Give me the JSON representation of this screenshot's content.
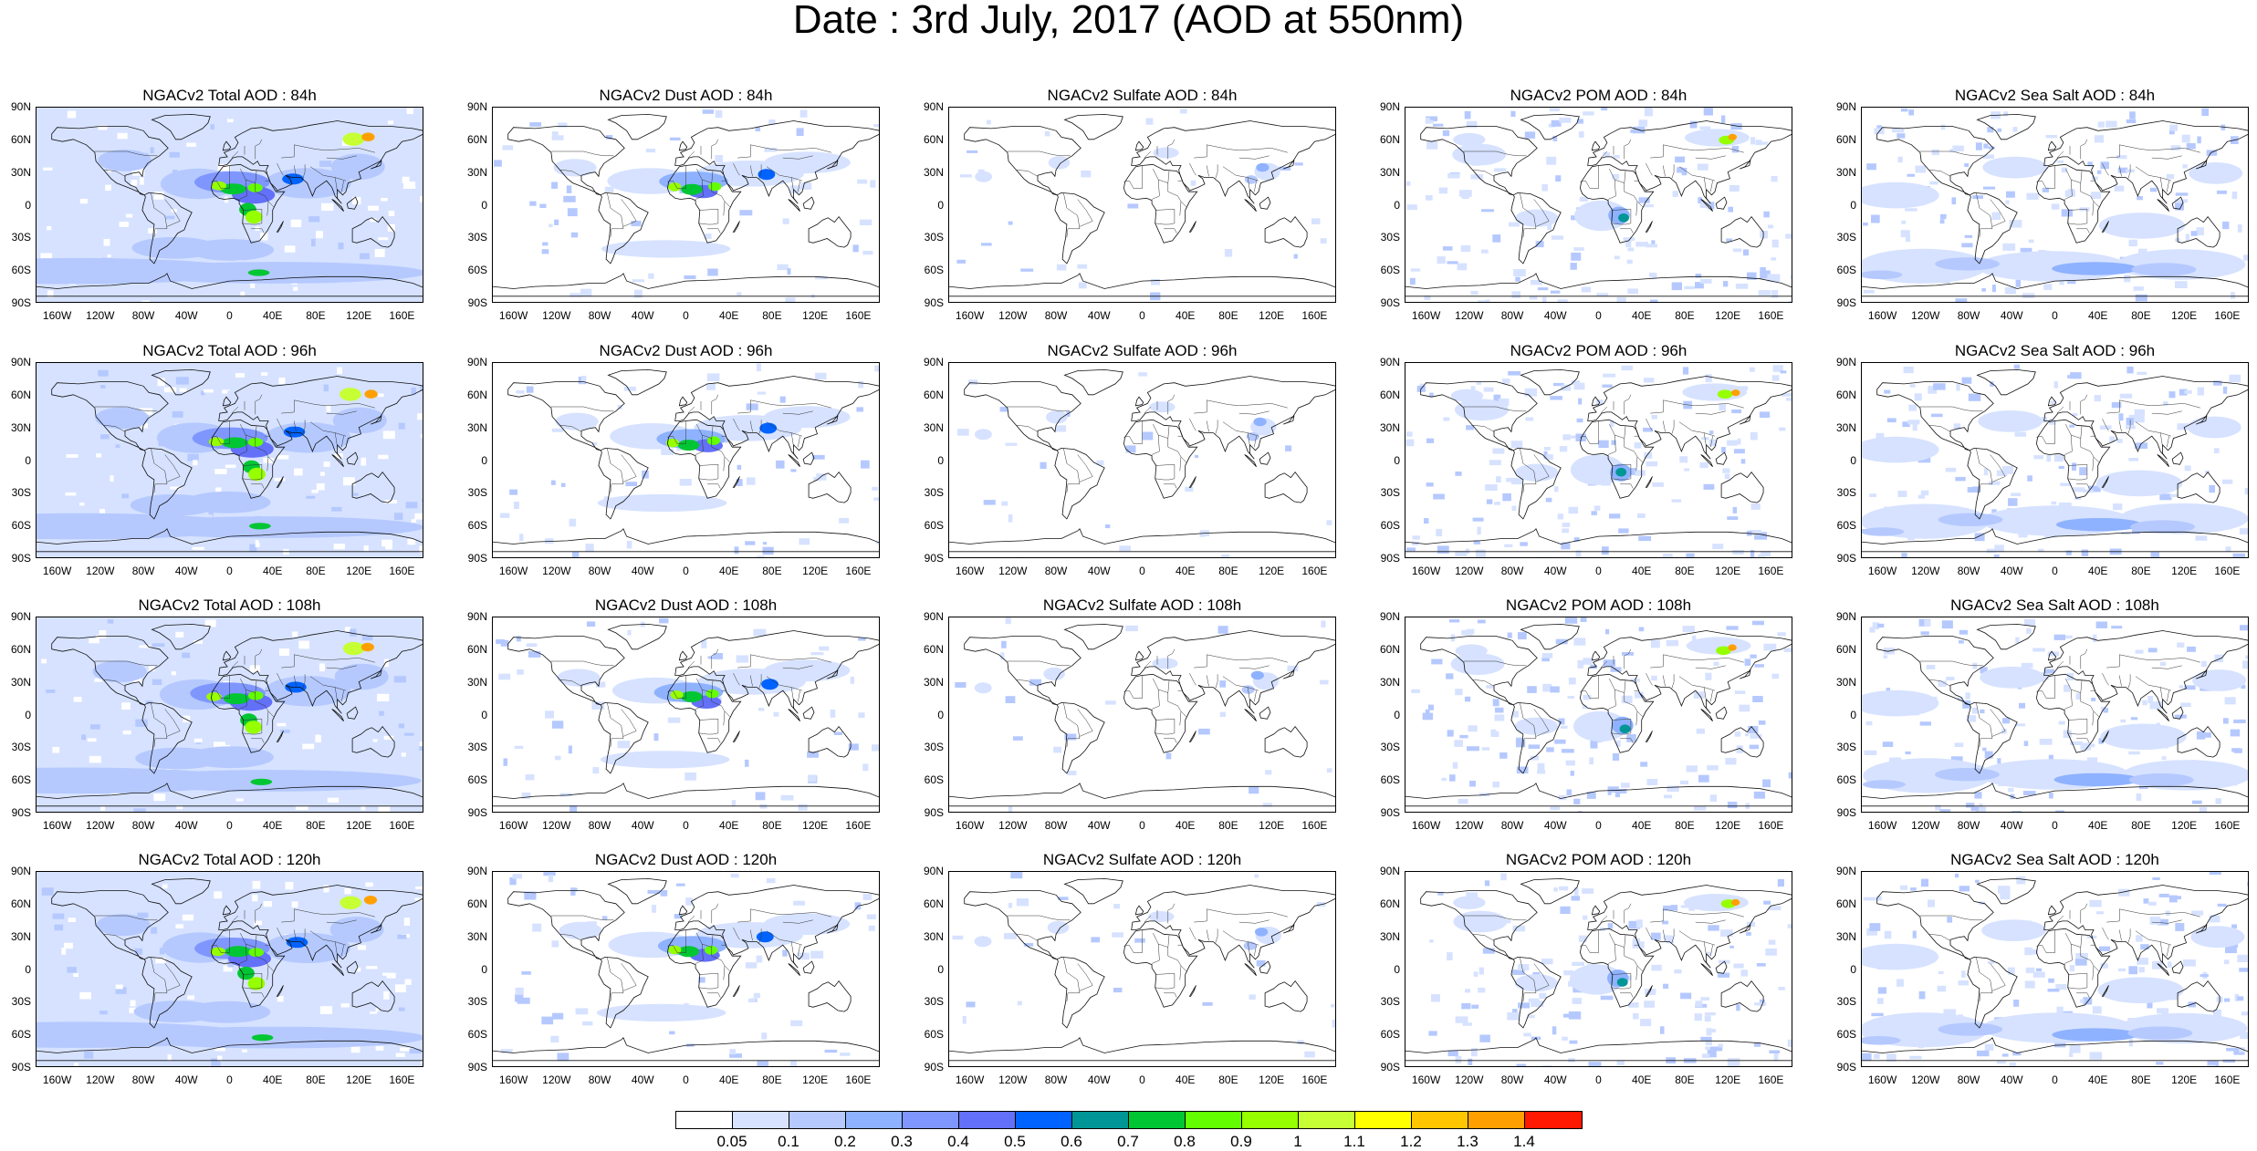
{
  "title": "Date : 3rd July, 2017 (AOD at 550nm)",
  "axes": {
    "lat_labels": [
      "90N",
      "60N",
      "30N",
      "0",
      "30S",
      "60S",
      "90S"
    ],
    "lon_labels": [
      "160W",
      "120W",
      "80W",
      "40W",
      "0",
      "40E",
      "80E",
      "120E",
      "160E"
    ]
  },
  "panels": [
    {
      "title": "NGACv2 Total AOD : 84h",
      "species": "total",
      "hour": 84
    },
    {
      "title": "NGACv2 Dust AOD : 84h",
      "species": "dust",
      "hour": 84
    },
    {
      "title": "NGACv2 Sulfate AOD : 84h",
      "species": "sulfate",
      "hour": 84
    },
    {
      "title": "NGACv2 POM AOD : 84h",
      "species": "pom",
      "hour": 84
    },
    {
      "title": "NGACv2 Sea Salt AOD : 84h",
      "species": "seasalt",
      "hour": 84
    },
    {
      "title": "NGACv2 Total AOD : 96h",
      "species": "total",
      "hour": 96
    },
    {
      "title": "NGACv2 Dust AOD : 96h",
      "species": "dust",
      "hour": 96
    },
    {
      "title": "NGACv2 Sulfate AOD : 96h",
      "species": "sulfate",
      "hour": 96
    },
    {
      "title": "NGACv2 POM AOD : 96h",
      "species": "pom",
      "hour": 96
    },
    {
      "title": "NGACv2 Sea Salt AOD : 96h",
      "species": "seasalt",
      "hour": 96
    },
    {
      "title": "NGACv2 Total AOD : 108h",
      "species": "total",
      "hour": 108
    },
    {
      "title": "NGACv2 Dust AOD : 108h",
      "species": "dust",
      "hour": 108
    },
    {
      "title": "NGACv2 Sulfate AOD : 108h",
      "species": "sulfate",
      "hour": 108
    },
    {
      "title": "NGACv2 POM AOD : 108h",
      "species": "pom",
      "hour": 108
    },
    {
      "title": "NGACv2 Sea Salt AOD : 108h",
      "species": "seasalt",
      "hour": 108
    },
    {
      "title": "NGACv2 Total AOD : 120h",
      "species": "total",
      "hour": 120
    },
    {
      "title": "NGACv2 Dust AOD : 120h",
      "species": "dust",
      "hour": 120
    },
    {
      "title": "NGACv2 Sulfate AOD : 120h",
      "species": "sulfate",
      "hour": 120
    },
    {
      "title": "NGACv2 POM AOD : 120h",
      "species": "pom",
      "hour": 120
    },
    {
      "title": "NGACv2 Sea Salt  AOD : 120h",
      "species": "seasalt",
      "hour": 120
    }
  ],
  "colorbar": {
    "labels": [
      "0.05",
      "0.1",
      "0.2",
      "0.3",
      "0.4",
      "0.5",
      "0.6",
      "0.7",
      "0.8",
      "0.9",
      "1",
      "1.1",
      "1.2",
      "1.3",
      "1.4"
    ],
    "colors": [
      "#ffffff",
      "#d6e2ff",
      "#b5c9ff",
      "#8eb2ff",
      "#7f96ff",
      "#6370f8",
      "#0063ff",
      "#009696",
      "#00c633",
      "#63ff00",
      "#96ff00",
      "#c6ff33",
      "#ffff00",
      "#ffc600",
      "#ffa000",
      "#ff7c00",
      "#ff1900"
    ]
  }
}
